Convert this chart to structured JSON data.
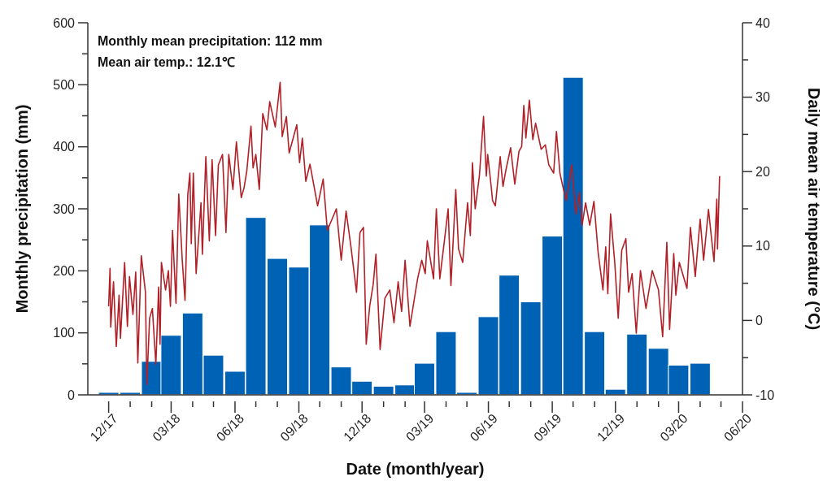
{
  "chart_data": {
    "type": "bar",
    "xlabel": "Date (month/year)",
    "ylabel": "Monthly precipitation (mm)",
    "y2label": "Daily mean air temperature (°C)",
    "annotations": [
      "Monthly mean precipitation: 112 mm",
      "Mean air temp.: 12.1℃"
    ],
    "x": [
      "2017-12",
      "2018-01",
      "2018-02",
      "2018-03",
      "2018-04",
      "2018-05",
      "2018-06",
      "2018-07",
      "2018-08",
      "2018-09",
      "2018-10",
      "2018-11",
      "2018-12",
      "2019-01",
      "2019-02",
      "2019-03",
      "2019-04",
      "2019-05",
      "2019-06",
      "2019-07",
      "2019-08",
      "2019-09",
      "2019-10",
      "2019-11",
      "2019-12",
      "2020-01",
      "2020-02",
      "2020-03",
      "2020-04"
    ],
    "series": [
      {
        "color": "#0062b4",
        "values": [
          4,
          4,
          54,
          96,
          132,
          64,
          38,
          286,
          220,
          206,
          274,
          45,
          22,
          14,
          16,
          51,
          102,
          4,
          126,
          193,
          150,
          256,
          512,
          102,
          9,
          98,
          75,
          48,
          51
        ]
      },
      {
        "type": "line",
        "axis": "y2",
        "color": "#b22028",
        "x": [
          "2017-12-01",
          "2017-12-03",
          "2017-12-04",
          "2017-12-08",
          "2017-12-12",
          "2017-12-16",
          "2017-12-18",
          "2017-12-24",
          "2017-12-28",
          "2017-12-31",
          "2018-01-05",
          "2018-01-09",
          "2018-01-12",
          "2018-01-17",
          "2018-01-23",
          "2018-01-25",
          "2018-01-29",
          "2018-02-02",
          "2018-02-07",
          "2018-02-11",
          "2018-02-13",
          "2018-02-15",
          "2018-02-21",
          "2018-02-25",
          "2018-02-28",
          "2018-03-03",
          "2018-03-08",
          "2018-03-12",
          "2018-03-17",
          "2018-03-21",
          "2018-03-25",
          "2018-03-28",
          "2018-03-30",
          "2018-04-02",
          "2018-04-06",
          "2018-04-13",
          "2018-04-15",
          "2018-04-20",
          "2018-04-25",
          "2018-04-29",
          "2018-05-04",
          "2018-05-08",
          "2018-05-14",
          "2018-05-19",
          "2018-05-23",
          "2018-05-29",
          "2018-06-03",
          "2018-06-10",
          "2018-06-14",
          "2018-06-18",
          "2018-06-24",
          "2018-06-27",
          "2018-07-01",
          "2018-07-06",
          "2018-07-11",
          "2018-07-17",
          "2018-07-21",
          "2018-07-29",
          "2018-08-05",
          "2018-08-08",
          "2018-08-14",
          "2018-08-18",
          "2018-08-29",
          "2018-09-02",
          "2018-09-06",
          "2018-09-11",
          "2018-09-17",
          "2018-09-28",
          "2018-10-06",
          "2018-10-12",
          "2018-10-25",
          "2018-11-01",
          "2018-11-08",
          "2018-11-15",
          "2018-11-23",
          "2018-11-28",
          "2018-12-03",
          "2018-12-07",
          "2018-12-12",
          "2018-12-17",
          "2018-12-21",
          "2018-12-27",
          "2019-01-03",
          "2019-01-10",
          "2019-01-16",
          "2019-01-22",
          "2019-01-27",
          "2019-02-01",
          "2019-02-08",
          "2019-02-14",
          "2019-02-19",
          "2019-02-25",
          "2019-03-02",
          "2019-03-05",
          "2019-03-14",
          "2019-03-18",
          "2019-03-23",
          "2019-03-30",
          "2019-04-04",
          "2019-04-08",
          "2019-04-15",
          "2019-04-19",
          "2019-04-25",
          "2019-05-02",
          "2019-05-06",
          "2019-05-09",
          "2019-05-13",
          "2019-05-19",
          "2019-05-25",
          "2019-05-29",
          "2019-05-31",
          "2019-06-05",
          "2019-06-07",
          "2019-06-11",
          "2019-06-18",
          "2019-06-22",
          "2019-06-26",
          "2019-07-03",
          "2019-07-09",
          "2019-07-15",
          "2019-07-19",
          "2019-07-22",
          "2019-07-25",
          "2019-07-30",
          "2019-08-04",
          "2019-08-08",
          "2019-08-16",
          "2019-08-22",
          "2019-08-27",
          "2019-09-03",
          "2019-09-07",
          "2019-09-12",
          "2019-09-16",
          "2019-09-21",
          "2019-09-29",
          "2019-10-05",
          "2019-10-10",
          "2019-10-14",
          "2019-10-19",
          "2019-10-25",
          "2019-10-31",
          "2019-11-06",
          "2019-11-13",
          "2019-11-17",
          "2019-11-20",
          "2019-11-24",
          "2019-11-30",
          "2019-12-05",
          "2019-12-10",
          "2019-12-16",
          "2019-12-20",
          "2019-12-25",
          "2019-12-31",
          "2020-01-06",
          "2020-01-14",
          "2020-01-23",
          "2020-02-01",
          "2020-02-07",
          "2020-02-13",
          "2020-02-17",
          "2020-02-23",
          "2020-02-26",
          "2020-03-02",
          "2020-03-13",
          "2020-03-18",
          "2020-03-25",
          "2020-04-01",
          "2020-04-06",
          "2020-04-13",
          "2020-04-21",
          "2020-04-25",
          "2020-04-26",
          "2020-04-29"
        ],
        "values": [
          1.9,
          7.0,
          -0.9,
          5.2,
          -3.5,
          3.4,
          -2.4,
          7.8,
          -0.8,
          5.9,
          0.8,
          6.5,
          -5.7,
          8.7,
          3.8,
          -8.6,
          0.3,
          1.6,
          -5.9,
          4.5,
          -3.2,
          7.8,
          4.1,
          6.7,
          1.9,
          12.1,
          2.3,
          17.0,
          8.1,
          2.7,
          16.9,
          19.8,
          10.3,
          19.8,
          6.3,
          15.8,
          8.9,
          22.0,
          10.7,
          21.6,
          11.4,
          20.9,
          22.3,
          11.8,
          22.3,
          17.6,
          24.0,
          16.5,
          17.8,
          20.1,
          26.1,
          20.5,
          22.3,
          17.6,
          27.8,
          25.6,
          29.4,
          26.0,
          32.0,
          24.7,
          27.4,
          22.5,
          26.3,
          21.2,
          24.5,
          18.7,
          21.0,
          15.4,
          19.0,
          12.1,
          15.0,
          8.1,
          14.7,
          9.9,
          3.8,
          11.8,
          12.5,
          -3.2,
          1.9,
          4.8,
          8.9,
          -3.9,
          3.0,
          4.1,
          -0.3,
          5.2,
          1.2,
          8.1,
          -0.8,
          2.7,
          5.6,
          8.1,
          6.3,
          10.7,
          5.6,
          15.0,
          5.6,
          11.0,
          15.0,
          4.7,
          17.6,
          9.6,
          7.8,
          15.8,
          11.4,
          21.2,
          15.0,
          19.4,
          27.4,
          19.4,
          22.3,
          18.0,
          16.1,
          15.4,
          22.0,
          18.0,
          20.1,
          23.2,
          18.3,
          22.7,
          23.4,
          28.9,
          24.5,
          29.6,
          24.3,
          26.5,
          23.0,
          23.6,
          20.9,
          19.8,
          25.4,
          19.8,
          18.1,
          16.1,
          20.9,
          14.3,
          17.2,
          12.8,
          15.8,
          12.8,
          16.0,
          9.2,
          4.1,
          9.9,
          3.6,
          14.3,
          7.8,
          0.3,
          9.4,
          11.0,
          3.8,
          6.3,
          -1.7,
          6.7,
          1.6,
          6.7,
          4.1,
          -2.2,
          10.5,
          -1.2,
          9.0,
          3.4,
          7.8,
          4.3,
          12.5,
          5.9,
          13.6,
          8.1,
          14.9,
          7.9,
          16.3,
          9.6,
          19.4
        ]
      }
    ],
    "xlim": [
      "2017-11",
      "2020-06"
    ],
    "xticks": [
      {
        "value": "2017-12",
        "label": "12/17"
      },
      {
        "value": "2018-01",
        "label": null
      },
      {
        "value": "2018-02",
        "label": null
      },
      {
        "value": "2018-03",
        "label": "03/18"
      },
      {
        "value": "2018-04",
        "label": null
      },
      {
        "value": "2018-05",
        "label": null
      },
      {
        "value": "2018-06",
        "label": "06/18"
      },
      {
        "value": "2018-07",
        "label": null
      },
      {
        "value": "2018-08",
        "label": null
      },
      {
        "value": "2018-09",
        "label": "09/18"
      },
      {
        "value": "2018-10",
        "label": null
      },
      {
        "value": "2018-11",
        "label": null
      },
      {
        "value": "2018-12",
        "label": "12/18"
      },
      {
        "value": "2019-01",
        "label": null
      },
      {
        "value": "2019-02",
        "label": null
      },
      {
        "value": "2019-03",
        "label": "03/19"
      },
      {
        "value": "2019-04",
        "label": null
      },
      {
        "value": "2019-05",
        "label": null
      },
      {
        "value": "2019-06",
        "label": "06/19"
      },
      {
        "value": "2019-07",
        "label": null
      },
      {
        "value": "2019-08",
        "label": null
      },
      {
        "value": "2019-09",
        "label": "09/19"
      },
      {
        "value": "2019-10",
        "label": null
      },
      {
        "value": "2019-11",
        "label": null
      },
      {
        "value": "2019-12",
        "label": "12/19"
      },
      {
        "value": "2020-01",
        "label": null
      },
      {
        "value": "2020-02",
        "label": null
      },
      {
        "value": "2020-03",
        "label": "03/20"
      },
      {
        "value": "2020-04",
        "label": null
      },
      {
        "value": "2020-05",
        "label": null
      },
      {
        "value": "2020-06",
        "label": "06/20"
      }
    ],
    "ylim": [
      0,
      600
    ],
    "yticks": [
      0,
      {
        "value": 50,
        "label": null
      },
      100,
      {
        "value": 150,
        "label": null
      },
      200,
      {
        "value": 250,
        "label": null
      },
      300,
      {
        "value": 350,
        "label": null
      },
      400,
      {
        "value": 450,
        "label": null
      },
      500,
      {
        "value": 550,
        "label": null
      },
      600
    ],
    "y2lim": [
      -10,
      40
    ],
    "y2ticks": [
      -10,
      {
        "value": -5,
        "label": null
      },
      0,
      {
        "value": 5,
        "label": null
      },
      10,
      {
        "value": 15,
        "label": null
      },
      20,
      {
        "value": 25,
        "label": null
      },
      30,
      {
        "value": 35,
        "label": null
      },
      40
    ]
  }
}
